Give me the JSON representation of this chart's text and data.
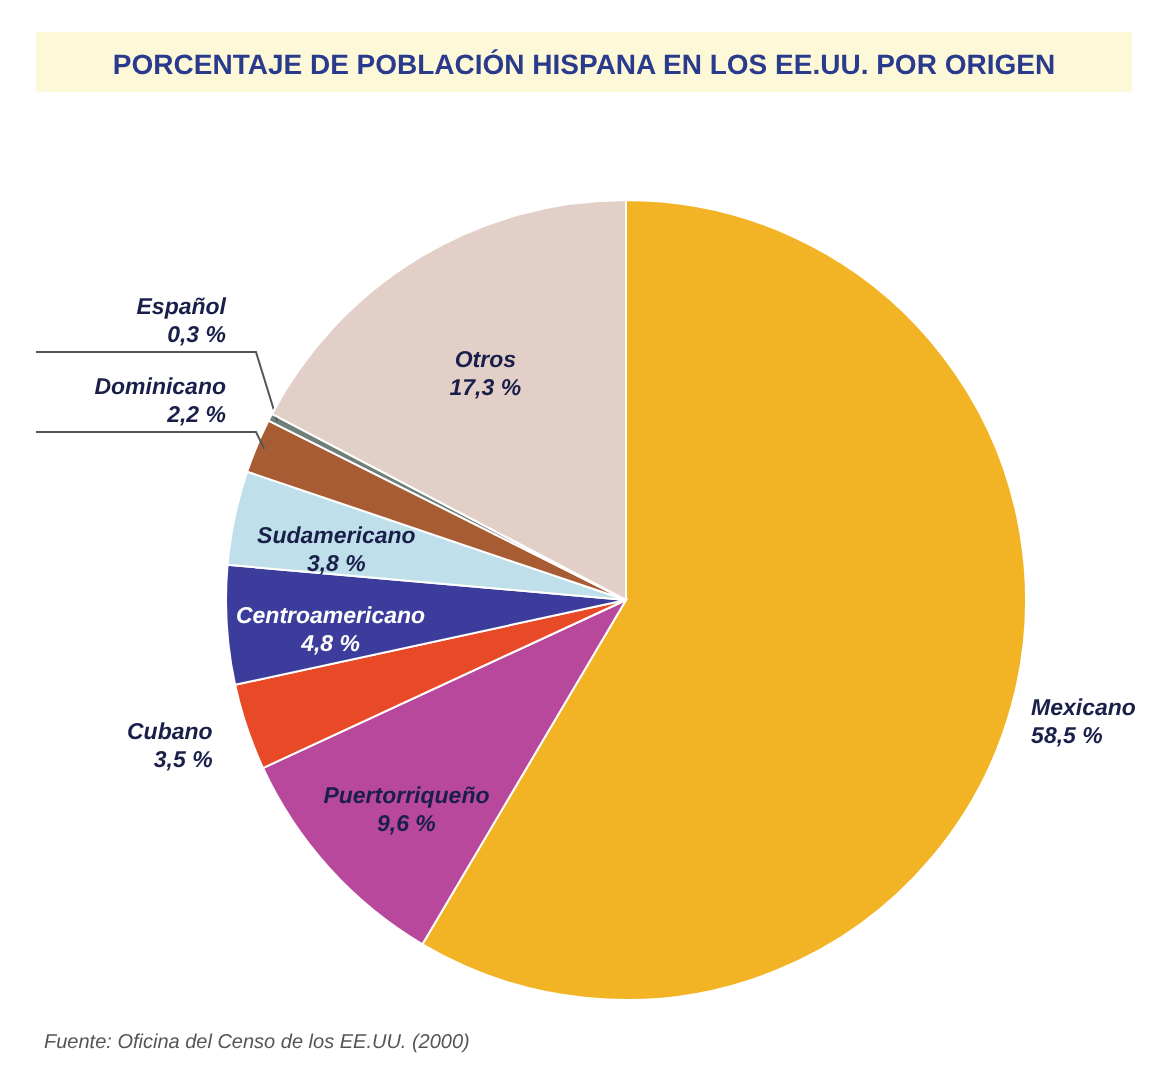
{
  "chart_data": {
    "type": "pie",
    "title": "PORCENTAJE DE POBLACIÓN HISPANA EN LOS EE.UU. POR ORIGEN",
    "categories": [
      "Mexicano",
      "Puertorriqueño",
      "Cubano",
      "Centroamericano",
      "Sudamericano",
      "Dominicano",
      "Español",
      "Otros"
    ],
    "values": [
      58.5,
      9.6,
      3.5,
      4.8,
      3.8,
      2.2,
      0.3,
      17.3
    ],
    "colors": [
      "#f2b424",
      "#b8489c",
      "#e84a28",
      "#3c3c9c",
      "#bfe0ea",
      "#a85c34",
      "#6e8078",
      "#e2d0c8"
    ],
    "value_labels": [
      "58,5 %",
      "9,6 %",
      "3,5 %",
      "4,8 %",
      "3,8 %",
      "2,2 %",
      "0,3 %",
      "17,3 %"
    ],
    "annotations": [
      "Fuente: Oficina del Censo de los EE.UU. (2000)"
    ]
  }
}
